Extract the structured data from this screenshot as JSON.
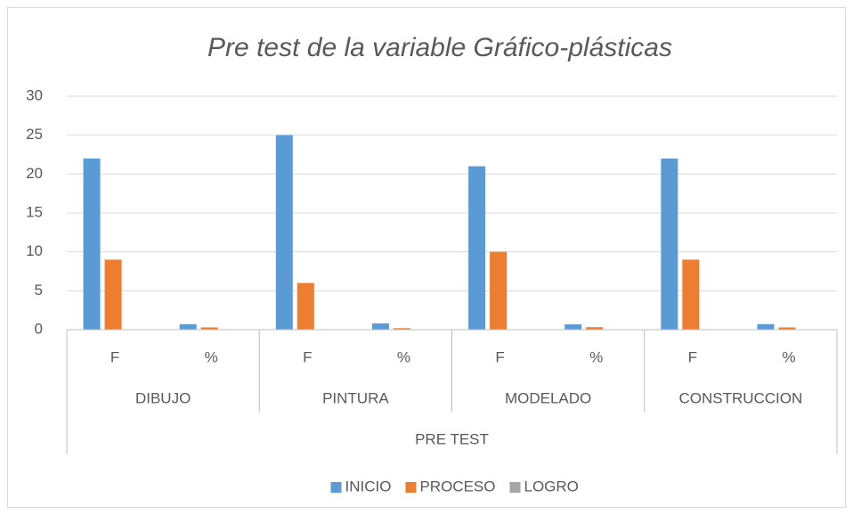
{
  "chart_data": {
    "type": "bar",
    "title": "Pre test de la variable Gráfico-plásticas",
    "categories": [
      "F",
      "%",
      "F",
      "%",
      "F",
      "%",
      "F",
      "%"
    ],
    "groups": [
      "DIBUJO",
      "PINTURA",
      "MODELADO",
      "CONSTRUCCION"
    ],
    "group_title": "PRE TEST",
    "series": [
      {
        "name": "INICIO",
        "color": "#5b9bd5",
        "values": [
          22,
          0.71,
          25,
          0.81,
          21,
          0.68,
          22,
          0.71
        ]
      },
      {
        "name": "PROCESO",
        "color": "#ed7d31",
        "values": [
          9,
          0.29,
          6,
          0.19,
          10,
          0.32,
          9,
          0.29
        ]
      },
      {
        "name": "LOGRO",
        "color": "#a5a5a5",
        "values": [
          0,
          0,
          0,
          0,
          0,
          0,
          0,
          0
        ]
      }
    ],
    "ylim": [
      0,
      30
    ],
    "yticks": [
      0,
      5,
      10,
      15,
      20,
      25,
      30
    ],
    "grid": true,
    "legend": "bottom"
  }
}
